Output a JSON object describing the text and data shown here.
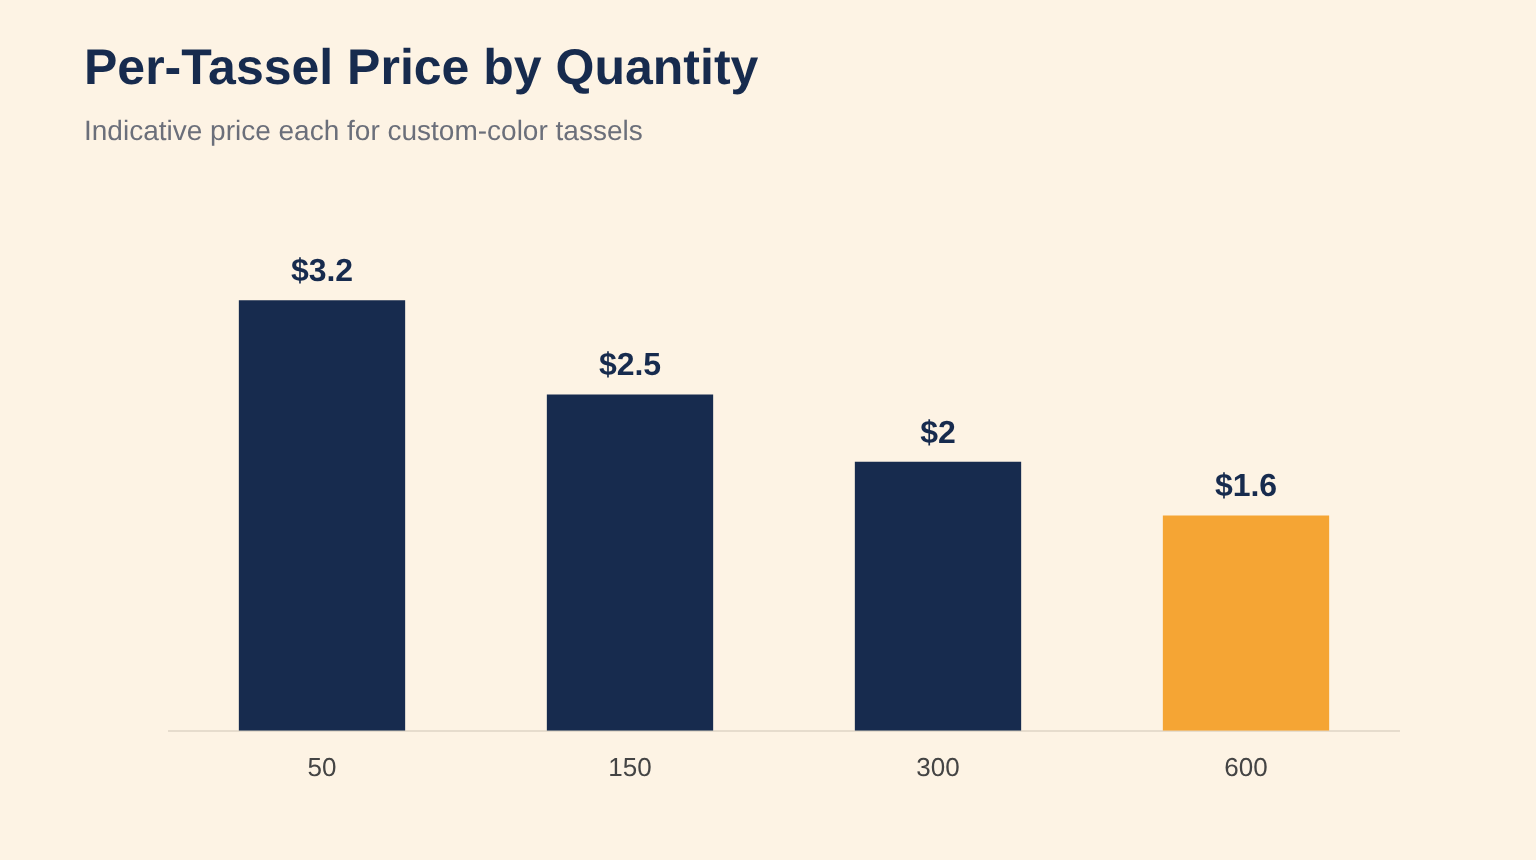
{
  "chart_data": {
    "type": "bar",
    "title": "Per-Tassel Price by Quantity",
    "subtitle": "Indicative price each for custom-color tassels",
    "categories": [
      "50",
      "150",
      "300",
      "600"
    ],
    "values": [
      3.2,
      2.5,
      2,
      1.6
    ],
    "colors": [
      "#172b4e",
      "#172b4e",
      "#172b4e",
      "#f5a534"
    ],
    "value_labels": [
      "$3.2",
      "$2.5",
      "$2",
      "$1.6"
    ]
  }
}
